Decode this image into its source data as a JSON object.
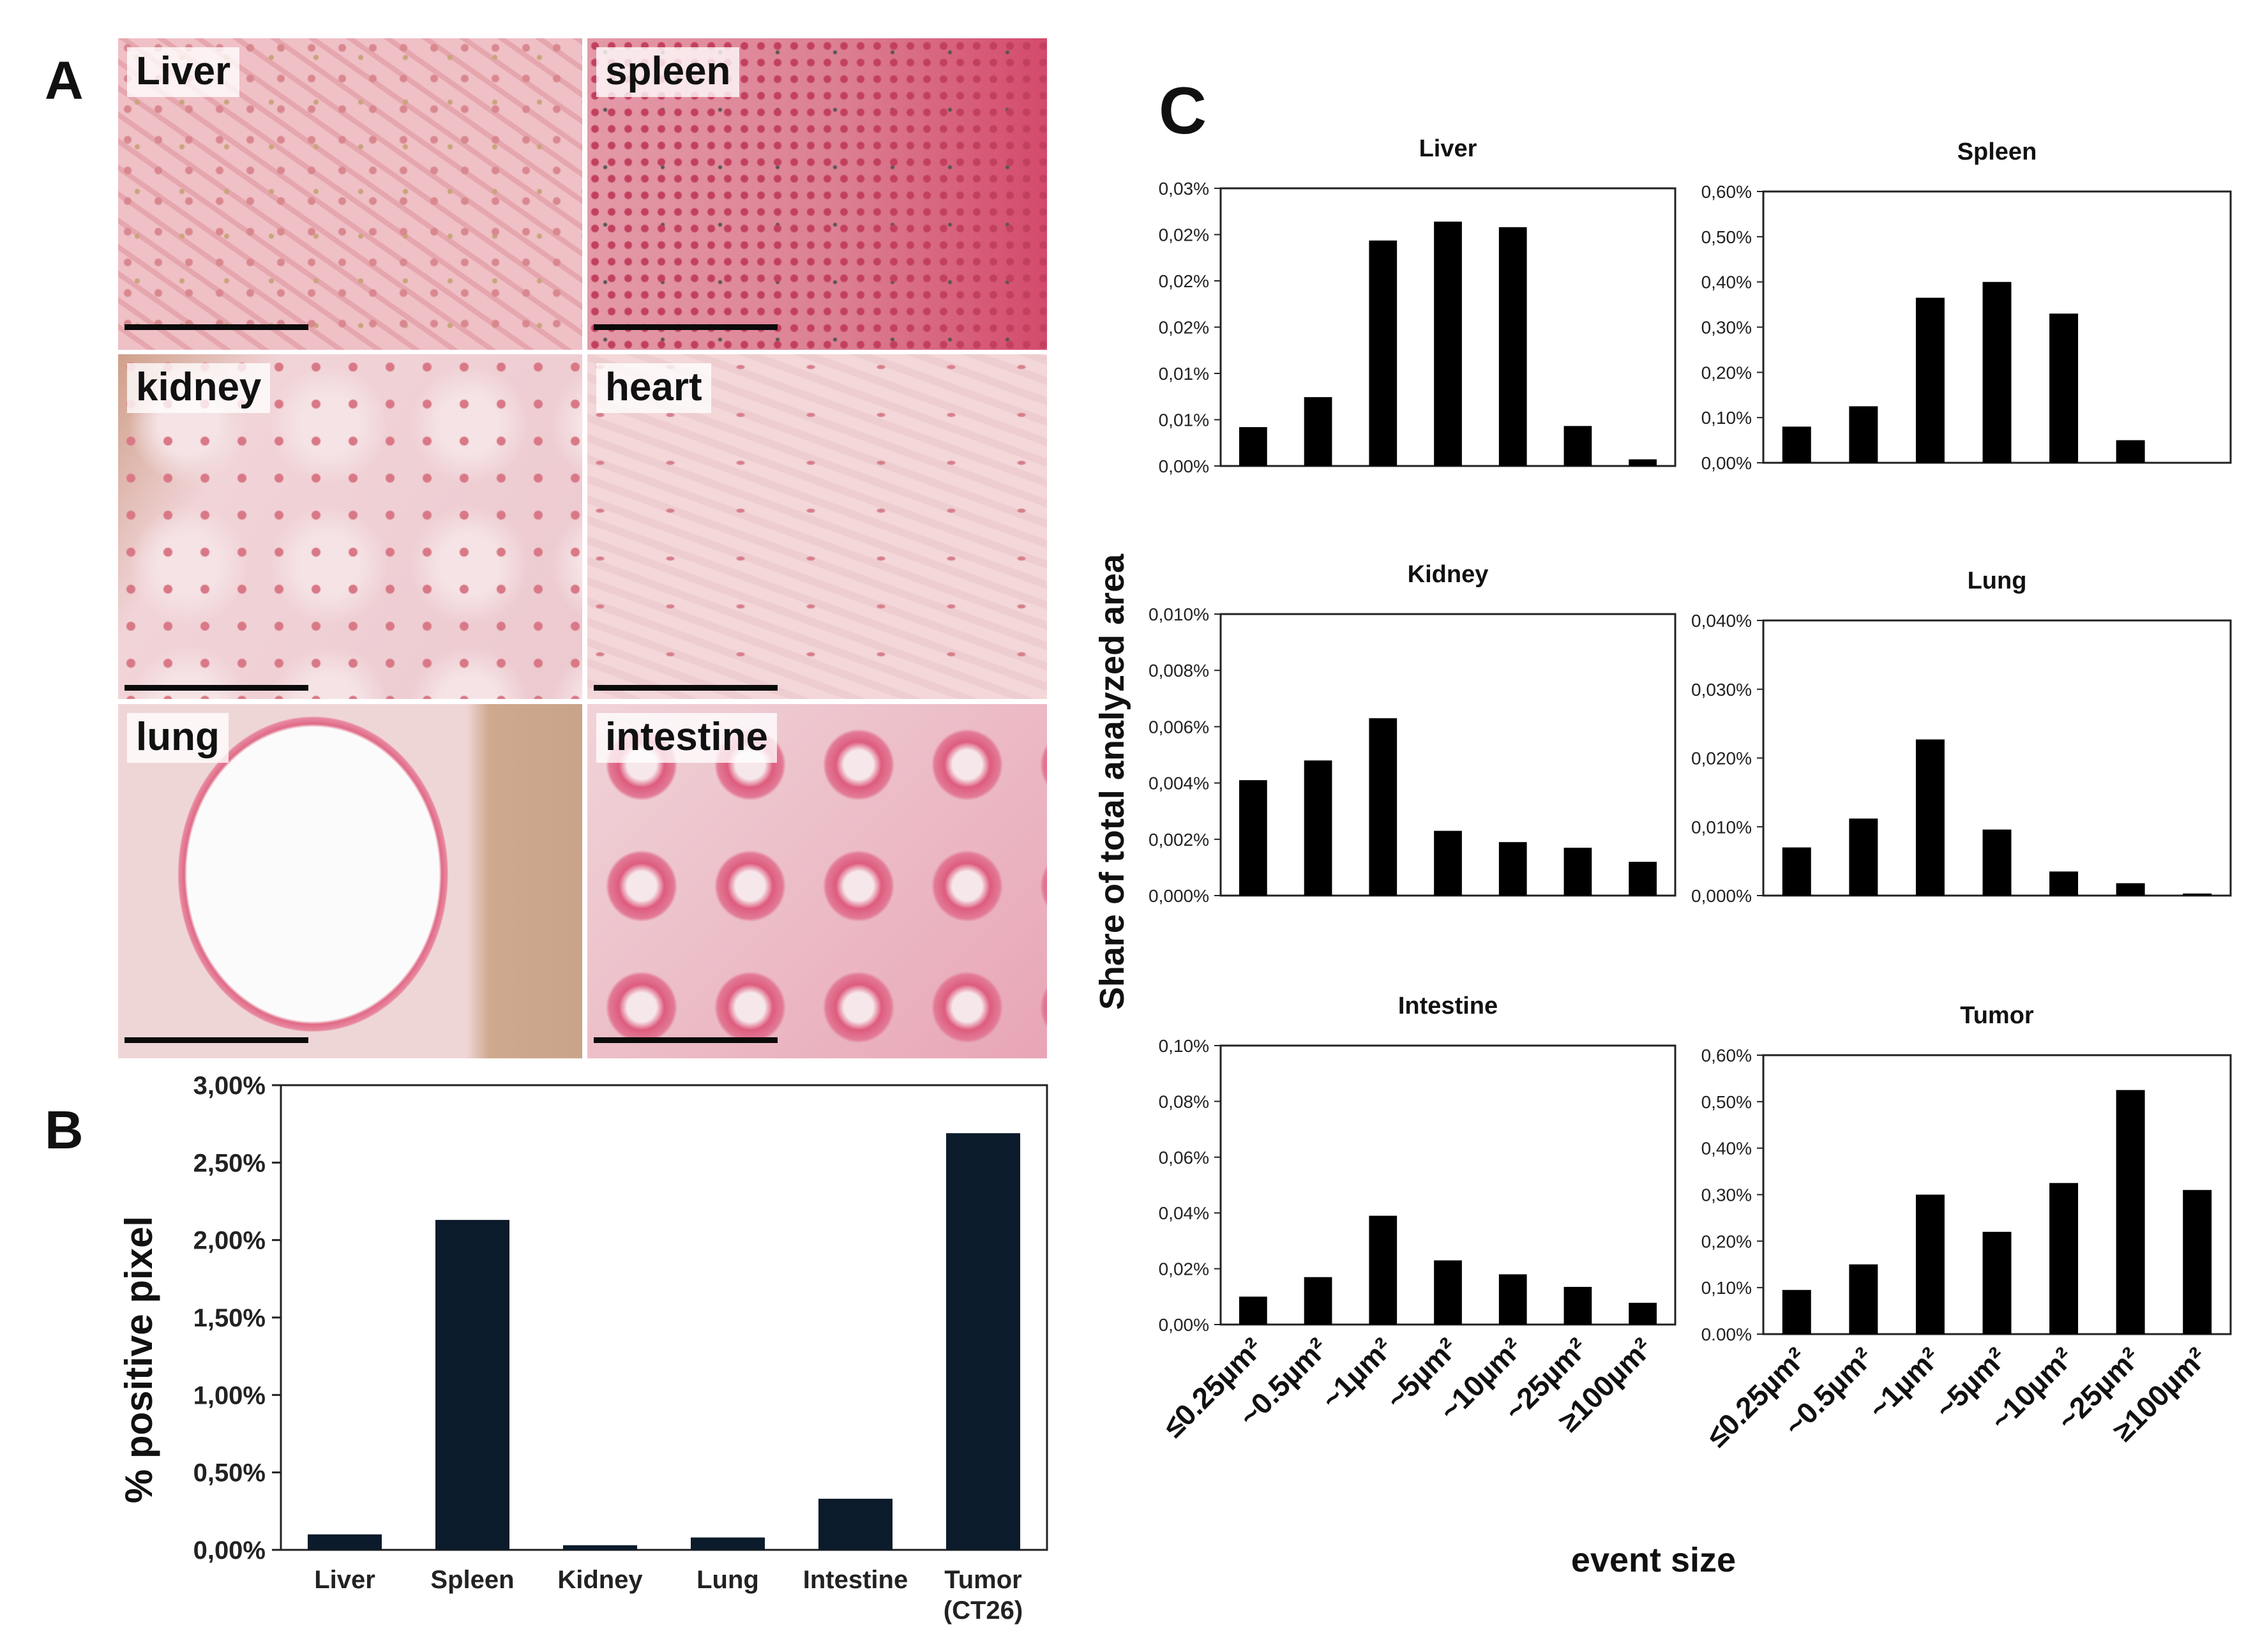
{
  "panel_labels": {
    "a": "A",
    "b": "B",
    "c": "C"
  },
  "histology": {
    "tiles": [
      {
        "label": "Liver",
        "tissue": "liver"
      },
      {
        "label": "spleen",
        "tissue": "spleen"
      },
      {
        "label": "kidney",
        "tissue": "kidney"
      },
      {
        "label": "heart",
        "tissue": "heart"
      },
      {
        "label": "lung",
        "tissue": "lung"
      },
      {
        "label": "intestine",
        "tissue": "intestine"
      }
    ]
  },
  "chart_data": [
    {
      "id": "B",
      "type": "bar",
      "title": "",
      "xlabel": "",
      "ylabel": "% positive pixel",
      "categories": [
        "Liver",
        "Spleen",
        "Kidney",
        "Lung",
        "Intestine",
        "Tumor (CT26)"
      ],
      "values": [
        0.1,
        2.13,
        0.03,
        0.08,
        0.33,
        2.69
      ],
      "ylim": [
        0,
        3.0
      ],
      "yticks": [
        "0,00%",
        "0,50%",
        "1,00%",
        "1,50%",
        "2,00%",
        "2,50%",
        "3,00%"
      ],
      "grid": false,
      "bar_color": "#0b1b2b"
    },
    {
      "id": "C",
      "type": "bar",
      "ylabel": "Share of total analyzed area",
      "xlabel": "event size",
      "categories": [
        "≤0.25µm²",
        "~0.5µm²",
        "~1µm²",
        "~5µm²",
        "~10µm²",
        "~25µm²",
        "≥100µm²"
      ],
      "grid": false,
      "bar_color": "#000000",
      "subplots": [
        {
          "title": "Liver",
          "values": [
            0.0035,
            0.0062,
            0.0203,
            0.022,
            0.0215,
            0.0036,
            0.0006
          ],
          "ylim": [
            0,
            0.025
          ],
          "yticks": [
            "0,00%",
            "0,01%",
            "0,01%",
            "0,02%",
            "0,02%",
            "0,02%",
            "0,03%"
          ]
        },
        {
          "title": "Spleen",
          "values": [
            0.08,
            0.125,
            0.365,
            0.4,
            0.33,
            0.05,
            0.0
          ],
          "ylim": [
            0,
            0.6
          ],
          "yticks": [
            "0,00%",
            "0,10%",
            "0,20%",
            "0,30%",
            "0,40%",
            "0,50%",
            "0,60%"
          ]
        },
        {
          "title": "Kidney",
          "values": [
            0.0041,
            0.0048,
            0.0063,
            0.0023,
            0.0019,
            0.0017,
            0.0012
          ],
          "ylim": [
            0,
            0.01
          ],
          "yticks": [
            "0,000%",
            "0,002%",
            "0,004%",
            "0,006%",
            "0,008%",
            "0,010%"
          ]
        },
        {
          "title": "Lung",
          "values": [
            0.007,
            0.0112,
            0.0227,
            0.0096,
            0.0035,
            0.0018,
            0.0003
          ],
          "ylim": [
            0,
            0.04
          ],
          "yticks": [
            "0,000%",
            "0,010%",
            "0,020%",
            "0,030%",
            "0,040%"
          ]
        },
        {
          "title": "Intestine",
          "values": [
            0.01,
            0.017,
            0.039,
            0.023,
            0.018,
            0.0135,
            0.0078
          ],
          "ylim": [
            0,
            0.1
          ],
          "yticks": [
            "0,00%",
            "0,02%",
            "0,04%",
            "0,06%",
            "0,08%",
            "0,10%"
          ]
        },
        {
          "title": "Tumor",
          "values": [
            0.095,
            0.15,
            0.3,
            0.22,
            0.325,
            0.525,
            0.31
          ],
          "ylim": [
            0,
            0.6
          ],
          "yticks": [
            "0.00%",
            "0,10%",
            "0,20%",
            "0,30%",
            "0,40%",
            "0,50%",
            "0,60%"
          ]
        }
      ]
    }
  ]
}
